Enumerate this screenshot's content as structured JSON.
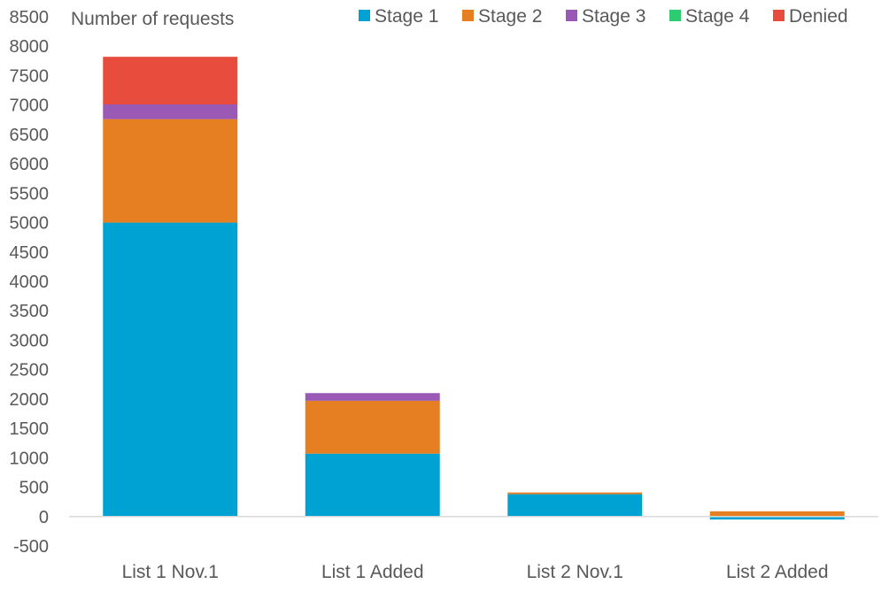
{
  "chart_data": {
    "type": "bar",
    "stacked": true,
    "title": "",
    "ylabel": "Number of requests",
    "xlabel": "",
    "ylim": [
      -500,
      8500
    ],
    "ytick_step": 500,
    "yticks": [
      "-500",
      "0",
      "500",
      "1000",
      "1500",
      "2000",
      "2500",
      "3000",
      "3500",
      "4000",
      "4500",
      "5000",
      "5500",
      "6000",
      "6500",
      "7000",
      "7500",
      "8000",
      "8500"
    ],
    "grid": false,
    "legend_position": "top-right",
    "categories": [
      "List 1 Nov.1",
      "List 1 Added",
      "List 2 Nov.1",
      "List 2 Added"
    ],
    "series": [
      {
        "name": "Stage 1",
        "color": "#00A2D3",
        "values": [
          5000,
          1070,
          380,
          -50
        ]
      },
      {
        "name": "Stage 2",
        "color": "#E67E22",
        "values": [
          1760,
          900,
          30,
          90
        ]
      },
      {
        "name": "Stage 3",
        "color": "#9B59B6",
        "values": [
          250,
          130,
          0,
          0
        ]
      },
      {
        "name": "Stage 4",
        "color": "#2ECC71",
        "values": [
          0,
          0,
          0,
          0
        ]
      },
      {
        "name": "Denied",
        "color": "#E74C3C",
        "values": [
          810,
          0,
          0,
          0
        ]
      }
    ]
  }
}
